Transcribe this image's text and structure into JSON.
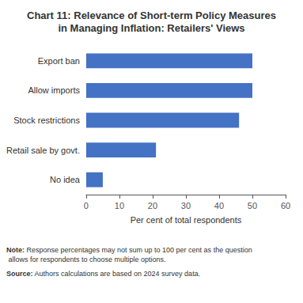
{
  "chart_data": {
    "type": "bar",
    "orientation": "horizontal",
    "title": "Chart 11: Relevance of Short-term Policy Measures",
    "subtitle": "in Managing Inflation: Retailers' Views",
    "categories": [
      "Export ban",
      "Allow imports",
      "Stock restrictions",
      "Retail sale by govt.",
      "No idea"
    ],
    "values": [
      50,
      50,
      46,
      21,
      5
    ],
    "color": "#4472C4",
    "xlabel": "Per cent of total respondents",
    "xlim": [
      0,
      60
    ],
    "xticks": [
      0,
      10,
      20,
      30,
      40,
      50,
      60
    ],
    "grid": false,
    "annotations": [
      {
        "label": "Note:",
        "text": "Response percentages may not sum up to 100 per cent as the question allows for respondents to choose multiple options."
      },
      {
        "label": "Source:",
        "text": "Authors calculations are based on 2024 survey data."
      }
    ]
  }
}
